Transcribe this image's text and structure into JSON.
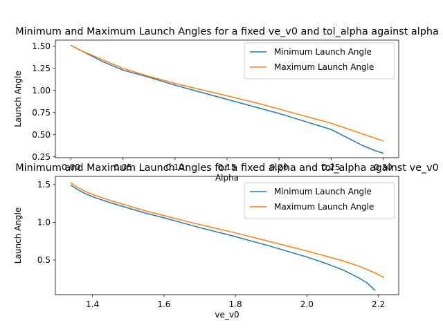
{
  "colors": {
    "min_series": "#1f77b4",
    "max_series": "#ff7f0e",
    "axes": "#000000",
    "legend_border": "#cccccc",
    "background": "#ffffff"
  },
  "chart_data": [
    {
      "type": "line",
      "title": "Minimum and Maximum Launch Angles for a fixed ve_v0 and tol_alpha against alpha",
      "xlabel": "Alpha",
      "ylabel": "Launch Angle",
      "xlim": [
        -0.015,
        0.315
      ],
      "ylim": [
        0.24,
        1.57
      ],
      "xticks": [
        0.0,
        0.05,
        0.1,
        0.15,
        0.2,
        0.25,
        0.3
      ],
      "xticklabels": [
        "0.00",
        "0.05",
        "0.10",
        "0.15",
        "0.20",
        "0.25",
        "0.30"
      ],
      "yticks": [
        0.25,
        0.5,
        0.75,
        1.0,
        1.25,
        1.5
      ],
      "yticklabels": [
        "0.25",
        "0.50",
        "0.75",
        "1.00",
        "1.25",
        "1.50"
      ],
      "legend_loc": "upper right",
      "grid": false,
      "series": [
        {
          "name": "Minimum Launch Angle",
          "x": [
            0.0,
            0.01,
            0.02,
            0.03,
            0.04,
            0.05,
            0.075,
            0.1,
            0.125,
            0.15,
            0.175,
            0.2,
            0.225,
            0.25,
            0.26,
            0.27,
            0.28,
            0.29,
            0.3
          ],
          "y": [
            1.51,
            1.45,
            1.39,
            1.33,
            1.28,
            1.23,
            1.15,
            1.06,
            0.98,
            0.9,
            0.82,
            0.74,
            0.65,
            0.56,
            0.5,
            0.44,
            0.38,
            0.33,
            0.29
          ]
        },
        {
          "name": "Maximum Launch Angle",
          "x": [
            0.0,
            0.01,
            0.02,
            0.03,
            0.04,
            0.05,
            0.075,
            0.1,
            0.125,
            0.15,
            0.175,
            0.2,
            0.225,
            0.25,
            0.275,
            0.3
          ],
          "y": [
            1.51,
            1.45,
            1.4,
            1.35,
            1.3,
            1.25,
            1.16,
            1.08,
            1.01,
            0.94,
            0.87,
            0.79,
            0.71,
            0.63,
            0.53,
            0.43
          ]
        }
      ]
    },
    {
      "type": "line",
      "title": "Minimum and Maximum Launch Angles for a fixed alpha and tol_alpha against ve_v0",
      "xlabel": "ve_v0",
      "ylabel": "Launch Angle",
      "xlim": [
        1.296,
        2.257
      ],
      "ylim": [
        0.04,
        1.61
      ],
      "xticks": [
        1.4,
        1.6,
        1.8,
        2.0,
        2.2
      ],
      "xticklabels": [
        "1.4",
        "1.6",
        "1.8",
        "2.0",
        "2.2"
      ],
      "yticks": [
        0.5,
        1.0,
        1.5
      ],
      "yticklabels": [
        "0.5",
        "1.0",
        "1.5"
      ],
      "legend_loc": "upper right",
      "grid": false,
      "series": [
        {
          "name": "Minimum Launch Angle",
          "x": [
            1.34,
            1.36,
            1.38,
            1.4,
            1.45,
            1.5,
            1.55,
            1.6,
            1.7,
            1.8,
            1.9,
            1.95,
            2.0,
            2.05,
            2.1,
            2.13,
            2.15,
            2.17,
            2.19
          ],
          "y": [
            1.49,
            1.43,
            1.38,
            1.34,
            1.26,
            1.19,
            1.12,
            1.06,
            0.93,
            0.81,
            0.68,
            0.61,
            0.54,
            0.46,
            0.37,
            0.3,
            0.25,
            0.19,
            0.1
          ]
        },
        {
          "name": "Maximum Launch Angle",
          "x": [
            1.34,
            1.36,
            1.38,
            1.4,
            1.45,
            1.5,
            1.55,
            1.6,
            1.7,
            1.8,
            1.9,
            2.0,
            2.1,
            2.15,
            2.19,
            2.215
          ],
          "y": [
            1.52,
            1.46,
            1.41,
            1.37,
            1.29,
            1.22,
            1.15,
            1.09,
            0.97,
            0.86,
            0.74,
            0.62,
            0.49,
            0.41,
            0.33,
            0.27
          ]
        }
      ]
    }
  ]
}
